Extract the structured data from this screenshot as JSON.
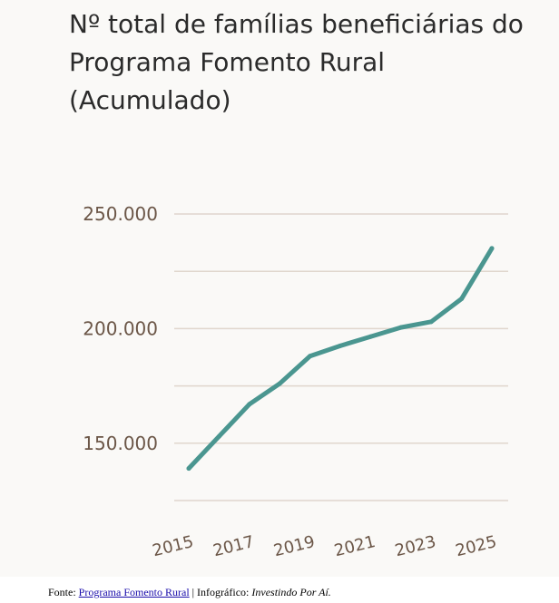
{
  "chart_data": {
    "type": "line",
    "title": "Nº total de famílias beneficiárias do Programa Fomento Rural (Acumulado)",
    "x": [
      2015,
      2016,
      2017,
      2018,
      2019,
      2020,
      2021,
      2022,
      2023,
      2024,
      2025
    ],
    "x_tick_labels": [
      "2015",
      "2017",
      "2019",
      "2021",
      "2023",
      "2025"
    ],
    "x_tick_values": [
      2015,
      2017,
      2019,
      2021,
      2023,
      2025
    ],
    "series": [
      {
        "values": [
          139000,
          153000,
          167000,
          176000,
          188000,
          192500,
          196500,
          200500,
          203000,
          213000,
          235000
        ]
      }
    ],
    "y_ticks": [
      150000,
      200000,
      250000
    ],
    "y_tick_labels": [
      "150.000",
      "200.000",
      "250.000"
    ],
    "ylim": [
      125000,
      250000
    ],
    "grid": true,
    "colors": {
      "line": "#4a9690",
      "grid": "#e0d6cd",
      "tick_text": "#6b5647"
    }
  },
  "source": {
    "prefix": "Fonte: ",
    "link_text": "Programa Fomento Rural",
    "separator": " | Infográfico: ",
    "credit": "Investindo Por Aí."
  }
}
